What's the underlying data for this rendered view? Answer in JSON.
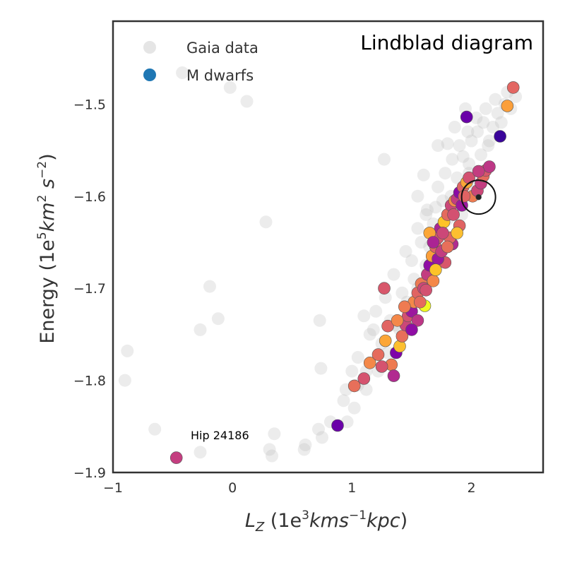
{
  "chart_data": {
    "type": "scatter",
    "title": "Lindblad diagram",
    "xlabel": "L_Z  (1e^3 kms^-1 kpc)",
    "ylabel": "Energy  (1e^5 km^2 s^-2)",
    "xlim": [
      -1.0,
      2.6
    ],
    "ylim": [
      -1.9,
      -1.41
    ],
    "xticks": [
      -1,
      0,
      1,
      2
    ],
    "xtick_labels": [
      "−1",
      "0",
      "1",
      "2"
    ],
    "yticks": [
      -1.5,
      -1.6,
      -1.7,
      -1.8,
      -1.9
    ],
    "ytick_labels": [
      "−1.5",
      "−1.6",
      "−1.7",
      "−1.8",
      "−1.9"
    ],
    "grid": false,
    "legend_position": "top-left",
    "colors": {
      "gaia": "#cccccc",
      "legend_mdwarf": "#1f77b4",
      "frame": "#333333"
    },
    "series": [
      {
        "name": "Gaia data",
        "points": [
          [
            -0.88,
            -1.768
          ],
          [
            -0.9,
            -1.8
          ],
          [
            -0.65,
            -1.853
          ],
          [
            -0.42,
            -1.466
          ],
          [
            -0.27,
            -1.878
          ],
          [
            -0.27,
            -1.745
          ],
          [
            -0.19,
            -1.698
          ],
          [
            -0.12,
            -1.733
          ],
          [
            -0.02,
            -1.482
          ],
          [
            0.12,
            -1.497
          ],
          [
            0.28,
            -1.628
          ],
          [
            0.31,
            -1.875
          ],
          [
            0.35,
            -1.858
          ],
          [
            0.33,
            -1.882
          ],
          [
            0.6,
            -1.875
          ],
          [
            0.61,
            -1.87
          ],
          [
            0.75,
            -1.862
          ],
          [
            0.72,
            -1.853
          ],
          [
            0.82,
            -1.845
          ],
          [
            0.93,
            -1.822
          ],
          [
            0.95,
            -1.81
          ],
          [
            1.0,
            -1.79
          ],
          [
            1.05,
            -1.775
          ],
          [
            1.15,
            -1.75
          ],
          [
            0.74,
            -1.787
          ],
          [
            0.73,
            -1.735
          ],
          [
            1.1,
            -1.73
          ],
          [
            1.2,
            -1.725
          ],
          [
            1.28,
            -1.71
          ],
          [
            1.35,
            -1.685
          ],
          [
            1.45,
            -1.66
          ],
          [
            1.55,
            -1.635
          ],
          [
            1.63,
            -1.615
          ],
          [
            1.72,
            -1.59
          ],
          [
            1.78,
            -1.575
          ],
          [
            1.84,
            -1.56
          ],
          [
            1.9,
            -1.545
          ],
          [
            1.97,
            -1.53
          ],
          [
            2.04,
            -1.515
          ],
          [
            2.12,
            -1.505
          ],
          [
            2.2,
            -1.495
          ],
          [
            2.3,
            -1.487
          ],
          [
            2.37,
            -1.492
          ],
          [
            2.33,
            -1.505
          ],
          [
            2.25,
            -1.52
          ],
          [
            2.15,
            -1.54
          ],
          [
            2.08,
            -1.555
          ],
          [
            1.98,
            -1.575
          ],
          [
            1.9,
            -1.598
          ],
          [
            1.8,
            -1.625
          ],
          [
            1.7,
            -1.65
          ],
          [
            1.62,
            -1.675
          ],
          [
            1.55,
            -1.7
          ],
          [
            1.48,
            -1.72
          ],
          [
            1.4,
            -1.745
          ],
          [
            1.3,
            -1.77
          ],
          [
            1.22,
            -1.79
          ],
          [
            1.12,
            -1.81
          ],
          [
            1.02,
            -1.83
          ],
          [
            0.96,
            -1.845
          ],
          [
            1.27,
            -1.56
          ],
          [
            1.6,
            -1.577
          ],
          [
            1.55,
            -1.6
          ],
          [
            1.62,
            -1.62
          ],
          [
            1.72,
            -1.545
          ],
          [
            1.8,
            -1.543
          ],
          [
            1.86,
            -1.525
          ],
          [
            1.93,
            -1.557
          ],
          [
            2.0,
            -1.54
          ],
          [
            1.95,
            -1.505
          ],
          [
            1.65,
            -1.655
          ],
          [
            1.5,
            -1.67
          ],
          [
            1.42,
            -1.705
          ],
          [
            1.32,
            -1.735
          ],
          [
            1.25,
            -1.76
          ],
          [
            1.18,
            -1.745
          ],
          [
            1.76,
            -1.605
          ],
          [
            1.68,
            -1.63
          ],
          [
            1.58,
            -1.65
          ],
          [
            1.88,
            -1.58
          ],
          [
            2.05,
            -1.53
          ],
          [
            2.1,
            -1.52
          ],
          [
            2.18,
            -1.525
          ],
          [
            2.28,
            -1.5
          ],
          [
            2.22,
            -1.51
          ],
          [
            1.36,
            -1.74
          ],
          [
            1.46,
            -1.715
          ],
          [
            1.52,
            -1.69
          ],
          [
            1.12,
            -1.79
          ],
          [
            1.05,
            -1.805
          ],
          [
            1.7,
            -1.612
          ],
          [
            1.83,
            -1.6
          ],
          [
            1.98,
            -1.565
          ],
          [
            2.14,
            -1.545
          ],
          [
            1.92,
            -1.62
          ],
          [
            2.02,
            -1.59
          ]
        ]
      },
      {
        "name": "M dwarfs",
        "points": [
          [
            -0.47,
            -1.884,
            "#c43e80"
          ],
          [
            0.88,
            -1.849,
            "#6a00a8"
          ],
          [
            1.02,
            -1.806,
            "#e76f5a"
          ],
          [
            1.1,
            -1.798,
            "#d5536f"
          ],
          [
            1.15,
            -1.781,
            "#f48849"
          ],
          [
            1.22,
            -1.772,
            "#e56b5d"
          ],
          [
            1.28,
            -1.757,
            "#fca636"
          ],
          [
            1.3,
            -1.741,
            "#e16462"
          ],
          [
            1.27,
            -1.7,
            "#d8576b"
          ],
          [
            1.33,
            -1.783,
            "#ee7b51"
          ],
          [
            1.35,
            -1.795,
            "#b12a90"
          ],
          [
            1.37,
            -1.77,
            "#7e03a8"
          ],
          [
            1.4,
            -1.763,
            "#fdbf30"
          ],
          [
            1.42,
            -1.752,
            "#e76f5a"
          ],
          [
            1.45,
            -1.74,
            "#cc4778"
          ],
          [
            1.47,
            -1.73,
            "#d35171"
          ],
          [
            1.5,
            -1.725,
            "#9c179e"
          ],
          [
            1.52,
            -1.715,
            "#f48849"
          ],
          [
            1.55,
            -1.705,
            "#e16462"
          ],
          [
            1.55,
            -1.735,
            "#bd3786"
          ],
          [
            1.58,
            -1.695,
            "#ed7953"
          ],
          [
            1.61,
            -1.719,
            "#f0f921"
          ],
          [
            1.63,
            -1.685,
            "#c33d80"
          ],
          [
            1.65,
            -1.675,
            "#8f0da4"
          ],
          [
            1.67,
            -1.665,
            "#fb9f3a"
          ],
          [
            1.7,
            -1.655,
            "#e06363"
          ],
          [
            1.72,
            -1.645,
            "#d8576b"
          ],
          [
            1.74,
            -1.635,
            "#ab2494"
          ],
          [
            1.77,
            -1.628,
            "#fdc328"
          ],
          [
            1.8,
            -1.62,
            "#e56b5d"
          ],
          [
            1.83,
            -1.61,
            "#cc4778"
          ],
          [
            1.86,
            -1.605,
            "#f48849"
          ],
          [
            1.88,
            -1.603,
            "#c33d80"
          ],
          [
            1.9,
            -1.596,
            "#8b0aa5"
          ],
          [
            1.93,
            -1.59,
            "#e16462"
          ],
          [
            1.96,
            -1.585,
            "#fca636"
          ],
          [
            1.98,
            -1.58,
            "#d35171"
          ],
          [
            2.01,
            -1.6,
            "#ee7b51"
          ],
          [
            2.05,
            -1.594,
            "#cc4778"
          ],
          [
            2.08,
            -1.586,
            "#c33d80"
          ],
          [
            2.1,
            -1.578,
            "#e56b5d"
          ],
          [
            2.12,
            -1.572,
            "#d8576b"
          ],
          [
            2.15,
            -1.568,
            "#bd3786"
          ],
          [
            2.24,
            -1.535,
            "#3a049a"
          ],
          [
            2.3,
            -1.502,
            "#fb9f3a"
          ],
          [
            2.35,
            -1.482,
            "#e36763"
          ],
          [
            1.96,
            -1.514,
            "#6a00a8"
          ],
          [
            1.9,
            -1.632,
            "#e06363"
          ],
          [
            1.84,
            -1.652,
            "#b12a90"
          ],
          [
            1.78,
            -1.672,
            "#d8576b"
          ],
          [
            1.72,
            -1.668,
            "#9c179e"
          ],
          [
            1.68,
            -1.692,
            "#f48849"
          ],
          [
            1.6,
            -1.7,
            "#cc4778"
          ],
          [
            1.65,
            -1.64,
            "#fca636"
          ],
          [
            1.75,
            -1.66,
            "#c33d80"
          ],
          [
            1.85,
            -1.62,
            "#d35171"
          ],
          [
            1.82,
            -1.645,
            "#e16462"
          ],
          [
            1.88,
            -1.64,
            "#fdbf30"
          ],
          [
            1.92,
            -1.61,
            "#9c179e"
          ],
          [
            1.44,
            -1.72,
            "#ee7b51"
          ],
          [
            1.5,
            -1.745,
            "#8f0da4"
          ],
          [
            1.38,
            -1.735,
            "#f48849"
          ],
          [
            1.57,
            -1.715,
            "#e56b5d"
          ],
          [
            1.62,
            -1.702,
            "#d35171"
          ],
          [
            1.68,
            -1.65,
            "#ab2494"
          ],
          [
            1.76,
            -1.64,
            "#cc4778"
          ],
          [
            1.94,
            -1.6,
            "#e06363"
          ],
          [
            2.06,
            -1.573,
            "#c33d80"
          ],
          [
            2.06,
            -1.601,
            "#222222"
          ],
          [
            1.7,
            -1.68,
            "#fdc328"
          ],
          [
            1.8,
            -1.655,
            "#e76f5a"
          ],
          [
            1.25,
            -1.785,
            "#d5536f"
          ]
        ]
      }
    ],
    "circled_point": [
      2.06,
      -1.601
    ],
    "annotations": [
      {
        "text": "Hip 24186",
        "x": -0.47,
        "y": -1.884
      }
    ]
  }
}
